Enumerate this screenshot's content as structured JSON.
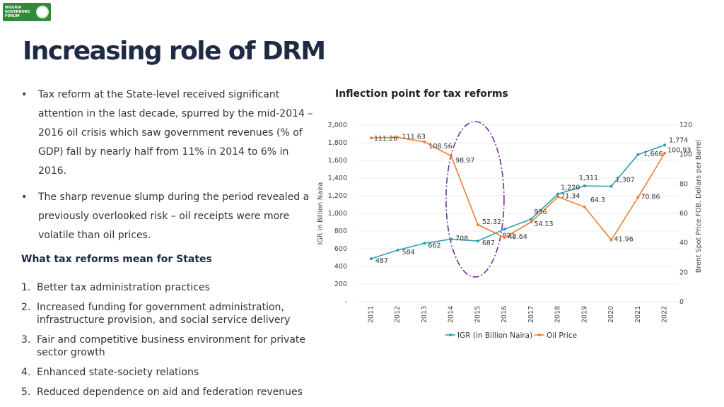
{
  "logo": {
    "text": "NIGERIA GOVERNORS' FORUM"
  },
  "title": "Increasing role of DRM",
  "bullets": [
    "Tax reform at the State-level received significant attention in the last decade, spurred by the mid-2014 – 2016 oil crisis which saw government revenues (% of GDP) fall by nearly half from 11% in 2014 to 6% in 2016.",
    "The sharp revenue slump during the period revealed a previously overlooked risk – oil receipts were more volatile than oil prices."
  ],
  "subheading": "What tax reforms mean for States",
  "reforms": [
    {
      "num": "1.",
      "text": "Better tax administration practices"
    },
    {
      "num": "2.",
      "text": "Increased funding for government administration, infrastructure provision, and social service delivery"
    },
    {
      "num": "3.",
      "text": "Fair and competitive business environment for private sector growth"
    },
    {
      "num": "4.",
      "text": "Enhanced state-society relations"
    },
    {
      "num": "5.",
      "text": "Reduced dependence on aid and federation revenues"
    }
  ],
  "chart_data": {
    "type": "line",
    "title": "Inflection point for tax reforms",
    "categories": [
      "2011",
      "2012",
      "2013",
      "2014",
      "2015",
      "2016",
      "2017",
      "2018",
      "2019",
      "2020",
      "2021",
      "2022"
    ],
    "series": [
      {
        "name": "IGR (in Billion Naira)",
        "axis": "left",
        "color": "#2a9db5",
        "values": [
          487,
          584,
          662,
          708,
          687,
          821,
          936,
          1220,
          1311,
          1307,
          1666,
          1774
        ],
        "labels": [
          "487",
          "584",
          "662",
          "708",
          "687",
          "821",
          "936",
          "1,220",
          "1,311",
          "1,307",
          "1,666",
          "1,774"
        ]
      },
      {
        "name": "Oil Price",
        "axis": "right",
        "color": "#ed7d31",
        "values": [
          111.26,
          111.63,
          108.56,
          98.97,
          52.32,
          43.64,
          54.13,
          71.34,
          64.3,
          41.96,
          70.86,
          100.93
        ],
        "labels": [
          "111.26",
          "111.63",
          "108.56",
          "98.97",
          "52.32",
          "43.64",
          "54.13",
          "71.34",
          "64.3",
          "41.96",
          "70.86",
          "100.93"
        ]
      }
    ],
    "y_left": {
      "label": "IGR in Billion Naira",
      "min": 0,
      "max": 2000,
      "ticks": [
        "-",
        "200",
        "400",
        "600",
        "800",
        "1,000",
        "1,200",
        "1,400",
        "1,600",
        "1,800",
        "2,000"
      ]
    },
    "y_right": {
      "label": "Brent Spot Price FOB, Dollars per Barrel",
      "min": 0,
      "max": 120,
      "ticks": [
        "0",
        "20",
        "40",
        "60",
        "80",
        "100",
        "120"
      ]
    },
    "legend_position": "bottom",
    "annotation": "dashed ellipse highlighting 2014–2016"
  }
}
